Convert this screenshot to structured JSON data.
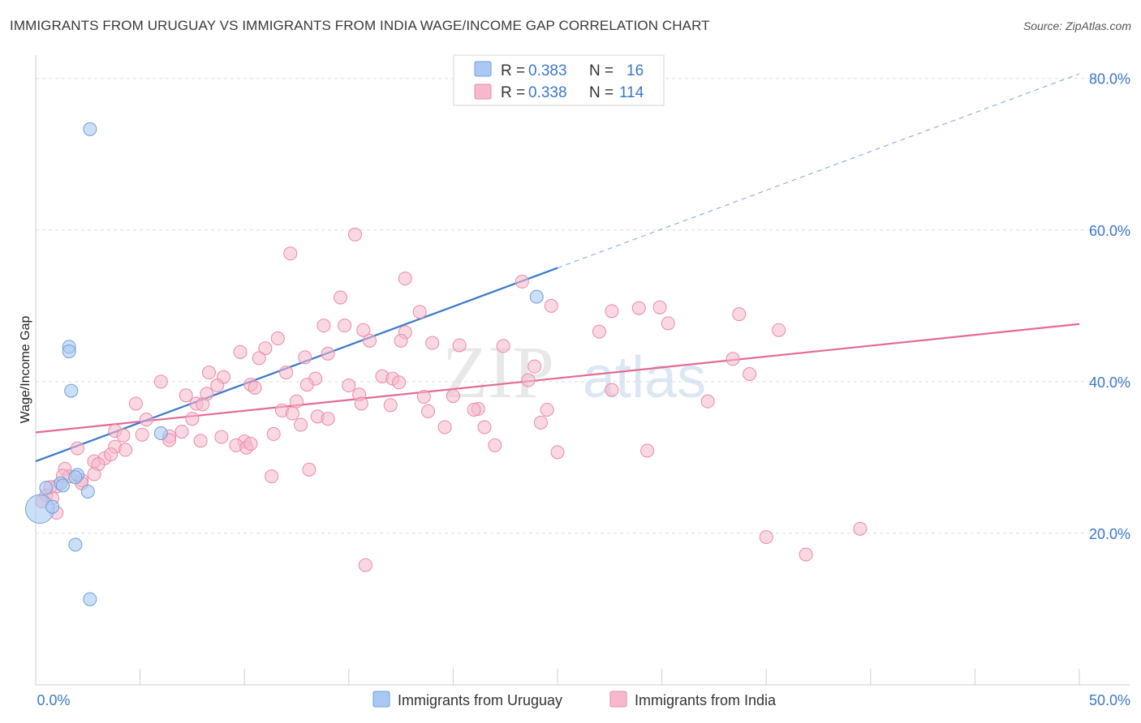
{
  "title": "IMMIGRANTS FROM URUGUAY VS IMMIGRANTS FROM INDIA WAGE/INCOME GAP CORRELATION CHART",
  "source": "Source: ZipAtlas.com",
  "watermark": {
    "zip": "ZIP",
    "atlas": "atlas"
  },
  "colors": {
    "uruguay_fill": "#a9c9f2",
    "uruguay_stroke": "#6d9fd9",
    "uruguay_line": "#3a78c9",
    "india_fill": "#f6b8cb",
    "india_stroke": "#e98aa9",
    "india_line": "#e46a94",
    "axis_text": "#3a78c9",
    "grid": "#dddddd"
  },
  "legend_top": {
    "rows": [
      {
        "r_label": "R =",
        "r_value": "0.383",
        "n_label": "N =",
        "n_value": "16"
      },
      {
        "r_label": "R =",
        "r_value": "0.338",
        "n_label": "N =",
        "n_value": "114"
      }
    ]
  },
  "legend_bottom": {
    "items": [
      {
        "label": "Immigrants from Uruguay"
      },
      {
        "label": "Immigrants from India"
      }
    ]
  },
  "chart_data": {
    "type": "scatter",
    "title": "IMMIGRANTS FROM URUGUAY VS IMMIGRANTS FROM INDIA WAGE/INCOME GAP CORRELATION CHART",
    "xlabel": "",
    "ylabel": "Wage/Income Gap",
    "xlim": [
      0,
      50
    ],
    "ylim": [
      0,
      82
    ],
    "x_tick_labels": [
      {
        "value": 0,
        "label": "0.0%"
      },
      {
        "value": 50,
        "label": "50.0%"
      }
    ],
    "y_tick_labels": [
      {
        "value": 20,
        "label": "20.0%"
      },
      {
        "value": 40,
        "label": "40.0%"
      },
      {
        "value": 60,
        "label": "60.0%"
      },
      {
        "value": 80,
        "label": "80.0%"
      }
    ],
    "grid": true,
    "legend_position": "top-center",
    "series": [
      {
        "name": "Immigrants from Uruguay",
        "R": 0.383,
        "N": 16,
        "trend": {
          "x0": 0,
          "y0": 29.5,
          "x1": 25,
          "y1": 55.0,
          "dash_to_x": 50,
          "dash_to_y": 80.6
        },
        "points": [
          [
            2.6,
            73.3
          ],
          [
            1.6,
            44.6
          ],
          [
            1.6,
            44.0
          ],
          [
            1.7,
            38.8
          ],
          [
            6.0,
            33.2
          ],
          [
            24.0,
            51.2
          ],
          [
            2.0,
            27.7
          ],
          [
            1.9,
            27.4
          ],
          [
            1.2,
            26.6
          ],
          [
            0.5,
            26.0
          ],
          [
            1.3,
            26.3
          ],
          [
            2.5,
            25.5
          ],
          [
            0.2,
            23.2
          ],
          [
            1.9,
            18.5
          ],
          [
            2.6,
            11.3
          ],
          [
            0.8,
            23.5
          ]
        ],
        "sizes": [
          1,
          1,
          1,
          1,
          1,
          1,
          1,
          1,
          1,
          1,
          1,
          1,
          2.2,
          1,
          1,
          1
        ]
      },
      {
        "name": "Immigrants from India",
        "R": 0.338,
        "N": 114,
        "trend": {
          "x0": 0,
          "y0": 33.3,
          "x1": 50,
          "y1": 47.6
        },
        "points": [
          [
            15.3,
            59.4
          ],
          [
            12.2,
            56.9
          ],
          [
            17.7,
            53.6
          ],
          [
            23.3,
            53.2
          ],
          [
            14.6,
            51.1
          ],
          [
            18.4,
            49.2
          ],
          [
            24.7,
            50.0
          ],
          [
            27.6,
            49.3
          ],
          [
            28.9,
            49.7
          ],
          [
            29.9,
            49.8
          ],
          [
            33.7,
            48.9
          ],
          [
            13.8,
            47.4
          ],
          [
            14.8,
            47.4
          ],
          [
            15.7,
            46.8
          ],
          [
            17.7,
            46.5
          ],
          [
            27.0,
            46.6
          ],
          [
            30.3,
            47.7
          ],
          [
            35.6,
            46.8
          ],
          [
            11.6,
            45.7
          ],
          [
            16.0,
            45.4
          ],
          [
            17.5,
            45.4
          ],
          [
            19.0,
            45.1
          ],
          [
            20.3,
            44.8
          ],
          [
            22.4,
            44.7
          ],
          [
            11.0,
            44.4
          ],
          [
            9.8,
            43.9
          ],
          [
            12.9,
            43.2
          ],
          [
            14.0,
            43.7
          ],
          [
            10.7,
            43.1
          ],
          [
            33.4,
            43.0
          ],
          [
            8.3,
            41.2
          ],
          [
            9.0,
            40.6
          ],
          [
            12.0,
            41.2
          ],
          [
            23.9,
            42.0
          ],
          [
            34.2,
            41.0
          ],
          [
            6.0,
            40.0
          ],
          [
            8.7,
            39.5
          ],
          [
            10.3,
            39.6
          ],
          [
            13.4,
            40.4
          ],
          [
            15.0,
            39.5
          ],
          [
            16.6,
            40.7
          ],
          [
            17.1,
            40.4
          ],
          [
            17.4,
            39.9
          ],
          [
            23.6,
            40.2
          ],
          [
            13.0,
            39.6
          ],
          [
            7.2,
            38.2
          ],
          [
            8.2,
            38.4
          ],
          [
            10.5,
            39.2
          ],
          [
            15.5,
            38.3
          ],
          [
            18.6,
            38.0
          ],
          [
            20.0,
            38.1
          ],
          [
            27.6,
            38.9
          ],
          [
            4.8,
            37.1
          ],
          [
            7.7,
            37.1
          ],
          [
            8.0,
            37.0
          ],
          [
            12.5,
            37.4
          ],
          [
            15.6,
            37.1
          ],
          [
            17.0,
            36.9
          ],
          [
            21.2,
            36.4
          ],
          [
            24.5,
            36.3
          ],
          [
            5.3,
            35.0
          ],
          [
            7.5,
            35.1
          ],
          [
            11.8,
            36.2
          ],
          [
            12.3,
            35.8
          ],
          [
            13.5,
            35.4
          ],
          [
            18.8,
            36.1
          ],
          [
            21.0,
            36.3
          ],
          [
            32.2,
            37.4
          ],
          [
            3.8,
            33.5
          ],
          [
            4.2,
            32.9
          ],
          [
            5.1,
            33.0
          ],
          [
            6.4,
            32.8
          ],
          [
            7.0,
            33.4
          ],
          [
            8.9,
            32.7
          ],
          [
            11.4,
            33.1
          ],
          [
            10.0,
            32.1
          ],
          [
            12.7,
            34.3
          ],
          [
            14.0,
            35.1
          ],
          [
            19.6,
            34.0
          ],
          [
            21.5,
            34.0
          ],
          [
            24.2,
            34.6
          ],
          [
            2.0,
            31.2
          ],
          [
            3.8,
            31.4
          ],
          [
            4.3,
            31.0
          ],
          [
            6.4,
            32.3
          ],
          [
            7.9,
            32.2
          ],
          [
            9.6,
            31.6
          ],
          [
            10.1,
            31.3
          ],
          [
            10.3,
            31.8
          ],
          [
            22.0,
            31.6
          ],
          [
            25.0,
            30.7
          ],
          [
            29.3,
            30.9
          ],
          [
            1.4,
            28.5
          ],
          [
            2.8,
            29.5
          ],
          [
            3.3,
            29.9
          ],
          [
            3.6,
            30.4
          ],
          [
            3.0,
            29.1
          ],
          [
            1.6,
            27.5
          ],
          [
            2.2,
            27.0
          ],
          [
            2.8,
            27.8
          ],
          [
            1.3,
            27.6
          ],
          [
            11.3,
            27.5
          ],
          [
            13.1,
            28.4
          ],
          [
            1.0,
            26.2
          ],
          [
            2.2,
            26.6
          ],
          [
            0.5,
            25.0
          ],
          [
            0.8,
            24.6
          ],
          [
            0.3,
            24.2
          ],
          [
            1.0,
            22.7
          ],
          [
            35.0,
            19.5
          ],
          [
            39.5,
            20.6
          ],
          [
            36.9,
            17.2
          ],
          [
            15.8,
            15.8
          ],
          [
            0.7,
            26.1
          ]
        ],
        "sizes": []
      }
    ]
  }
}
